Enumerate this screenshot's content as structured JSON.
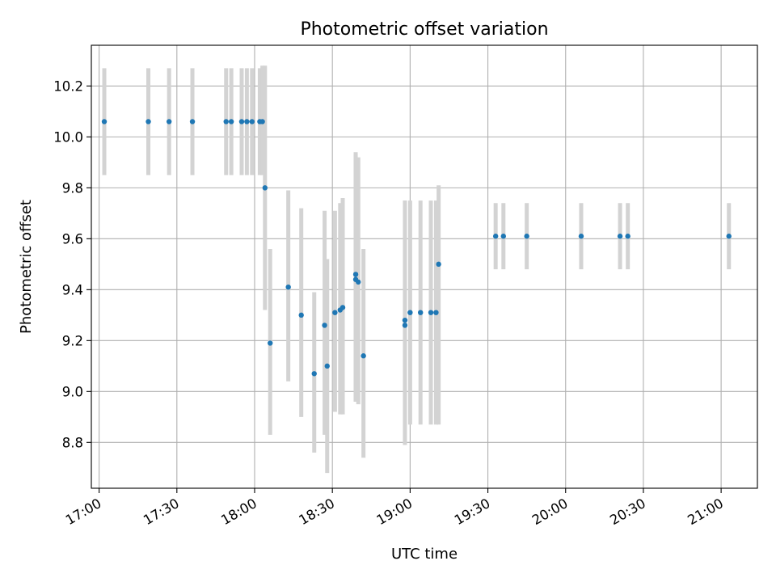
{
  "chart_data": {
    "type": "scatter",
    "title": "Photometric offset variation",
    "xlabel": "UTC time",
    "ylabel": "Photometric offset",
    "xlim": [
      "16:57",
      "21:14"
    ],
    "ylim": [
      8.62,
      10.36
    ],
    "x_ticks": [
      "17:00",
      "17:30",
      "18:00",
      "18:30",
      "19:00",
      "19:30",
      "20:00",
      "20:30",
      "21:00"
    ],
    "y_ticks": [
      "8.8",
      "9.0",
      "9.2",
      "9.4",
      "9.6",
      "9.8",
      "10.0",
      "10.2"
    ],
    "grid": true,
    "legend": "none",
    "colors": {
      "point": "#1f77b4",
      "errorbar": "#d3d3d3",
      "grid": "#b0b0b0"
    },
    "points": [
      {
        "x": "17:02",
        "y": 10.06,
        "ylow": 9.85,
        "yhigh": 10.27
      },
      {
        "x": "17:19",
        "y": 10.06,
        "ylow": 9.85,
        "yhigh": 10.27
      },
      {
        "x": "17:27",
        "y": 10.06,
        "ylow": 9.85,
        "yhigh": 10.27
      },
      {
        "x": "17:36",
        "y": 10.06,
        "ylow": 9.85,
        "yhigh": 10.27
      },
      {
        "x": "17:49",
        "y": 10.06,
        "ylow": 9.85,
        "yhigh": 10.27
      },
      {
        "x": "17:51",
        "y": 10.06,
        "ylow": 9.85,
        "yhigh": 10.27
      },
      {
        "x": "17:55",
        "y": 10.06,
        "ylow": 9.85,
        "yhigh": 10.27
      },
      {
        "x": "17:57",
        "y": 10.06,
        "ylow": 9.85,
        "yhigh": 10.27
      },
      {
        "x": "17:59",
        "y": 10.06,
        "ylow": 9.85,
        "yhigh": 10.27
      },
      {
        "x": "18:02",
        "y": 10.06,
        "ylow": 9.85,
        "yhigh": 10.27
      },
      {
        "x": "18:03",
        "y": 10.06,
        "ylow": 9.85,
        "yhigh": 10.28
      },
      {
        "x": "18:04",
        "y": 9.8,
        "ylow": 9.32,
        "yhigh": 10.28
      },
      {
        "x": "18:06",
        "y": 9.19,
        "ylow": 8.83,
        "yhigh": 9.56
      },
      {
        "x": "18:13",
        "y": 9.41,
        "ylow": 9.04,
        "yhigh": 9.79
      },
      {
        "x": "18:18",
        "y": 9.3,
        "ylow": 8.9,
        "yhigh": 9.72
      },
      {
        "x": "18:23",
        "y": 9.07,
        "ylow": 8.76,
        "yhigh": 9.39
      },
      {
        "x": "18:27",
        "y": 9.26,
        "ylow": 8.83,
        "yhigh": 9.71
      },
      {
        "x": "18:28",
        "y": 9.1,
        "ylow": 8.68,
        "yhigh": 9.52
      },
      {
        "x": "18:31",
        "y": 9.31,
        "ylow": 8.92,
        "yhigh": 9.71
      },
      {
        "x": "18:33",
        "y": 9.32,
        "ylow": 8.91,
        "yhigh": 9.74
      },
      {
        "x": "18:34",
        "y": 9.33,
        "ylow": 8.91,
        "yhigh": 9.76
      },
      {
        "x": "18:39",
        "y": 9.46,
        "ylow": 8.96,
        "yhigh": 9.94
      },
      {
        "x": "18:39",
        "y": 9.44,
        "ylow": 8.96,
        "yhigh": 9.93
      },
      {
        "x": "18:40",
        "y": 9.43,
        "ylow": 8.95,
        "yhigh": 9.92
      },
      {
        "x": "18:42",
        "y": 9.14,
        "ylow": 8.74,
        "yhigh": 9.56
      },
      {
        "x": "18:58",
        "y": 9.26,
        "ylow": 8.79,
        "yhigh": 9.75
      },
      {
        "x": "18:58",
        "y": 9.28,
        "ylow": 8.81,
        "yhigh": 9.75
      },
      {
        "x": "19:00",
        "y": 9.31,
        "ylow": 8.87,
        "yhigh": 9.75
      },
      {
        "x": "19:04",
        "y": 9.31,
        "ylow": 8.87,
        "yhigh": 9.75
      },
      {
        "x": "19:08",
        "y": 9.31,
        "ylow": 8.87,
        "yhigh": 9.75
      },
      {
        "x": "19:10",
        "y": 9.31,
        "ylow": 8.87,
        "yhigh": 9.75
      },
      {
        "x": "19:11",
        "y": 9.5,
        "ylow": 8.87,
        "yhigh": 9.81
      },
      {
        "x": "19:33",
        "y": 9.61,
        "ylow": 9.48,
        "yhigh": 9.74
      },
      {
        "x": "19:36",
        "y": 9.61,
        "ylow": 9.48,
        "yhigh": 9.74
      },
      {
        "x": "19:45",
        "y": 9.61,
        "ylow": 9.48,
        "yhigh": 9.74
      },
      {
        "x": "20:06",
        "y": 9.61,
        "ylow": 9.48,
        "yhigh": 9.74
      },
      {
        "x": "20:21",
        "y": 9.61,
        "ylow": 9.48,
        "yhigh": 9.74
      },
      {
        "x": "20:24",
        "y": 9.61,
        "ylow": 9.48,
        "yhigh": 9.74
      },
      {
        "x": "21:03",
        "y": 9.61,
        "ylow": 9.48,
        "yhigh": 9.74
      }
    ]
  }
}
